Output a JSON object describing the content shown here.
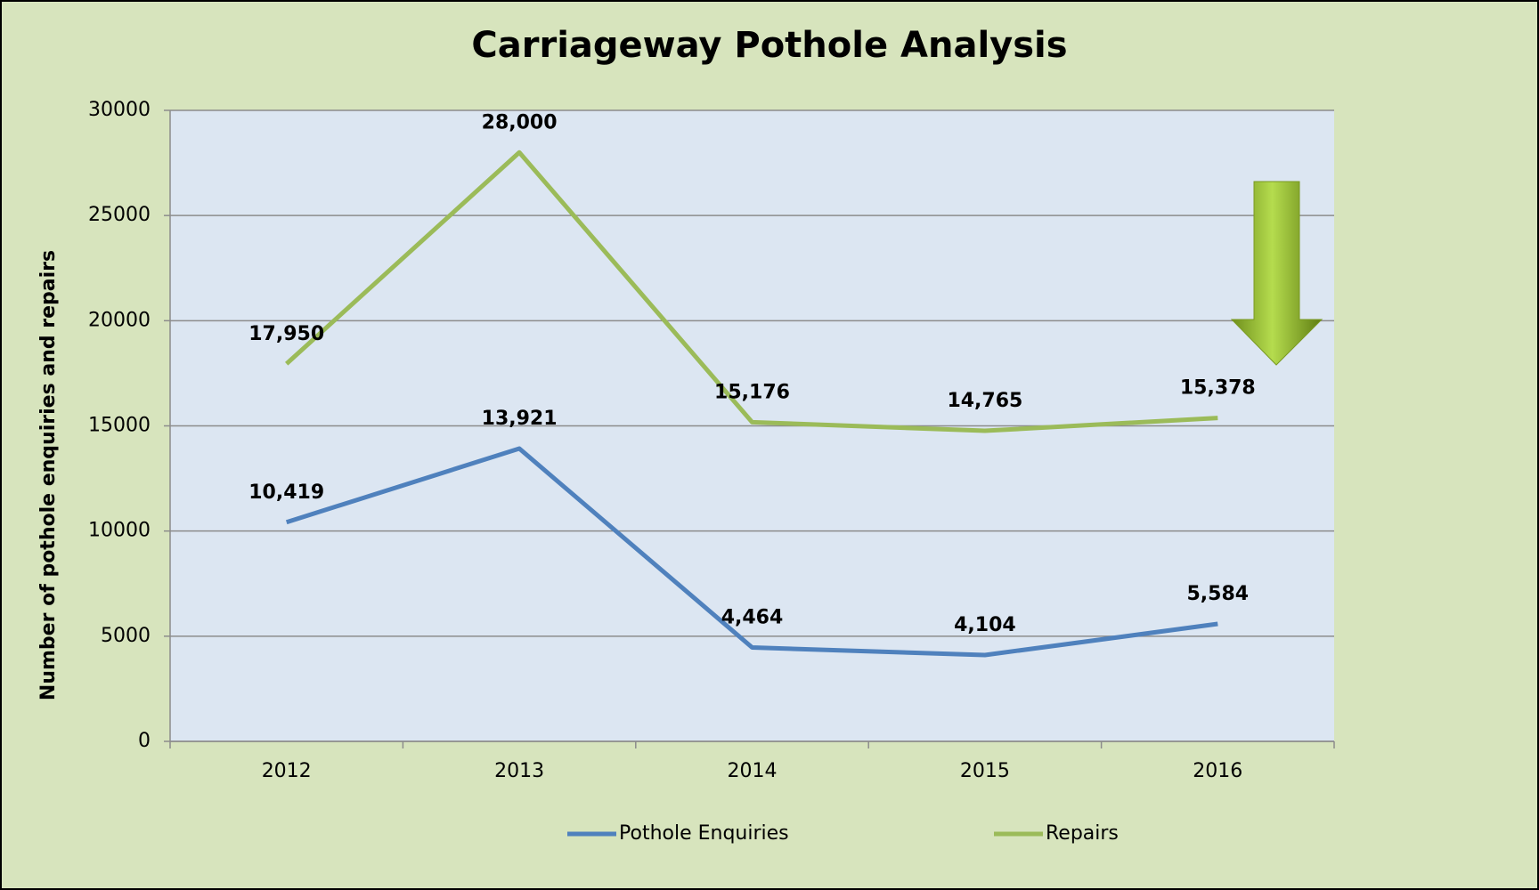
{
  "chart_data": {
    "type": "line",
    "title": "Carriageway Pothole Analysis",
    "ylabel": "Number of pothole enquiries and repairs",
    "categories": [
      "2012",
      "2013",
      "2014",
      "2015",
      "2016"
    ],
    "series": [
      {
        "name": "Pothole Enquiries",
        "color": "#4f81bd",
        "values": [
          10419,
          13921,
          4464,
          4104,
          5584
        ],
        "value_labels": [
          "10,419",
          "13,921",
          "4,464",
          "4,104",
          "5,584"
        ]
      },
      {
        "name": "Repairs",
        "color": "#9bbb59",
        "values": [
          17950,
          28000,
          15176,
          14765,
          15378
        ],
        "value_labels": [
          "17,950",
          "28,000",
          "15,176",
          "14,765",
          "15,378"
        ]
      }
    ],
    "ylim": [
      0,
      30000
    ],
    "yticks": [
      0,
      5000,
      10000,
      15000,
      20000,
      25000,
      30000
    ],
    "grid": true,
    "legend": "bottom"
  }
}
